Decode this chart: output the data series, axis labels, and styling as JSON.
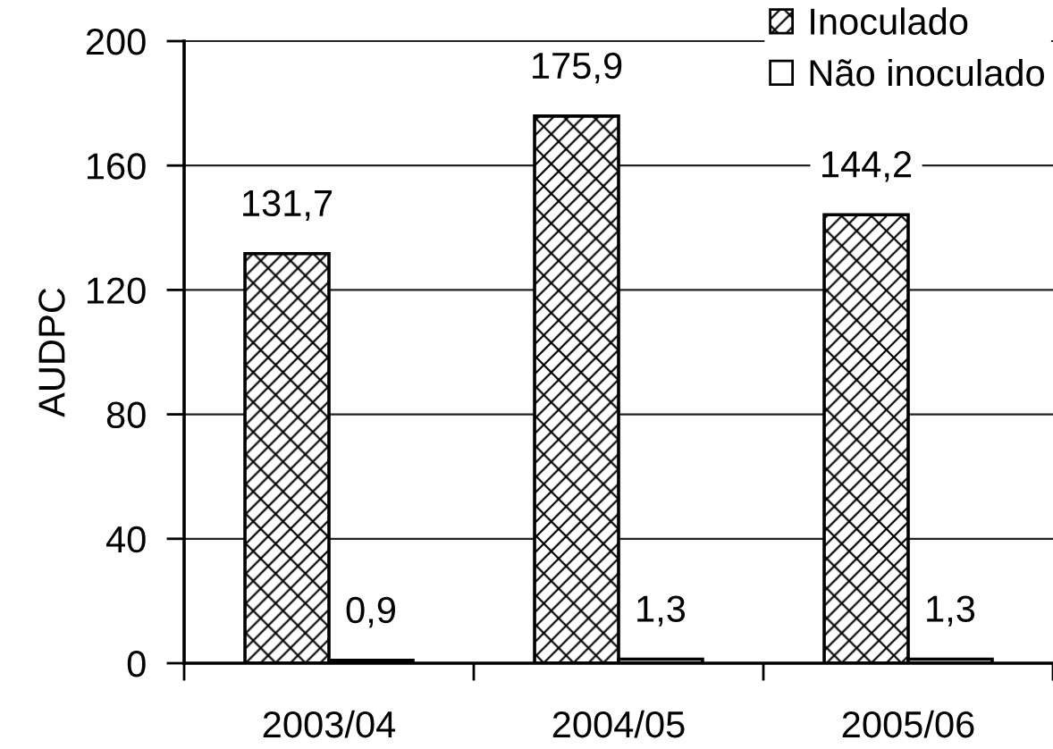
{
  "chart_data": {
    "type": "bar",
    "ylabel": "AUDPC",
    "categories": [
      "2003/04",
      "2004/05",
      "2005/06"
    ],
    "series": [
      {
        "name": "Inoculado",
        "color": "#000000",
        "values": [
          131.7,
          175.9,
          144.2
        ],
        "value_labels": [
          "131,7",
          "175,9",
          "144,2"
        ]
      },
      {
        "name": "Não inoculado",
        "color": "#000000",
        "values": [
          0.9,
          1.3,
          1.3
        ],
        "value_labels": [
          "0,9",
          "1,3",
          "1,3"
        ]
      }
    ],
    "ylim": [
      0,
      200
    ],
    "yticks": [
      0,
      40,
      80,
      120,
      160,
      200
    ],
    "grid": "y",
    "legend": "top right"
  }
}
